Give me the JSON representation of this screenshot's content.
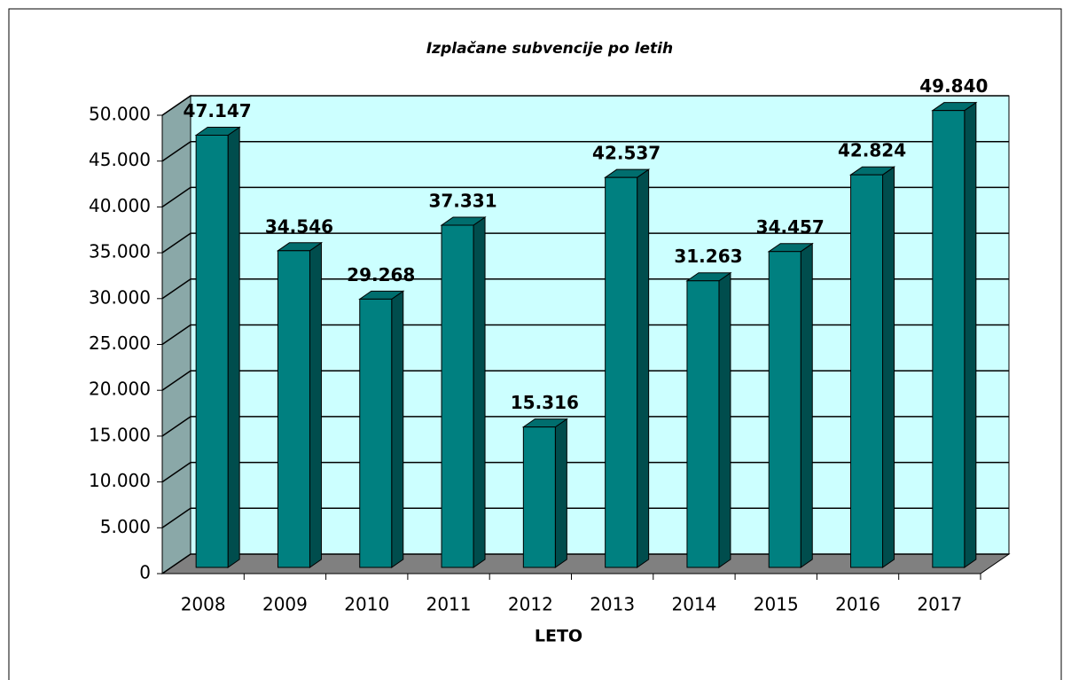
{
  "chart_data": {
    "type": "bar3d",
    "title": "Izplačane subvencije po letih",
    "x_label": "LETO",
    "categories": [
      "2008",
      "2009",
      "2010",
      "2011",
      "2012",
      "2013",
      "2014",
      "2015",
      "2016",
      "2017"
    ],
    "values": [
      47147,
      34546,
      29268,
      37331,
      15316,
      42537,
      31263,
      34457,
      42824,
      49840
    ],
    "value_labels": [
      "47.147",
      "34.546",
      "29.268",
      "37.331",
      "15.316",
      "42.537",
      "31.263",
      "34.457",
      "42.824",
      "49.840"
    ],
    "color": "#008080",
    "ylim": [
      0,
      50000
    ],
    "yticks": [
      0,
      {
        "value": 5000,
        "label": "5.000"
      },
      {
        "value": 10000,
        "label": "10.000"
      },
      {
        "value": 15000,
        "label": "15.000"
      },
      {
        "value": 20000,
        "label": "20.000"
      },
      {
        "value": 25000,
        "label": "25.000"
      },
      {
        "value": 30000,
        "label": "30.000"
      },
      {
        "value": 35000,
        "label": "35.000"
      },
      {
        "value": 40000,
        "label": "40.000"
      },
      {
        "value": 45000,
        "label": "45.000"
      },
      {
        "value": 50000,
        "label": "50.000"
      }
    ],
    "grid": true
  }
}
